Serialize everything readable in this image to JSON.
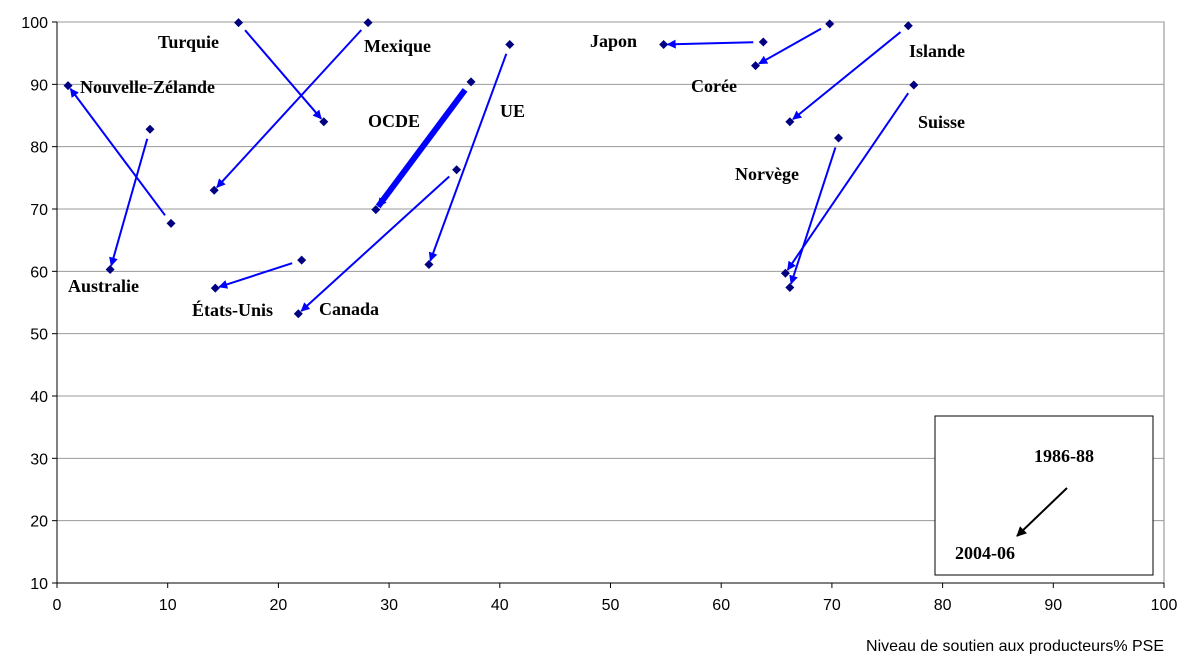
{
  "chart_data": {
    "type": "scatter",
    "title": "",
    "xlabel": "Niveau de soutien aux producteurs% PSE",
    "ylabel": "",
    "xlim": [
      0,
      100
    ],
    "ylim": [
      10,
      100
    ],
    "x_ticks": [
      0,
      10,
      20,
      30,
      40,
      50,
      60,
      70,
      80,
      90,
      100
    ],
    "y_ticks": [
      10,
      20,
      30,
      40,
      50,
      60,
      70,
      80,
      90,
      100
    ],
    "grid": "horizontal",
    "colors": {
      "marker": "#000080",
      "arrow": "#0000ff",
      "legend_arrow": "#000000"
    },
    "series": [
      {
        "name": "Nouvelle-Zélande",
        "from": {
          "x": 10.3,
          "y": 67.7
        },
        "to": {
          "x": 1.0,
          "y": 89.8
        }
      },
      {
        "name": "Australie",
        "from": {
          "x": 8.4,
          "y": 82.8
        },
        "to": {
          "x": 4.8,
          "y": 60.3
        }
      },
      {
        "name": "Turquie",
        "from": {
          "x": 16.4,
          "y": 99.9
        },
        "to": {
          "x": 24.1,
          "y": 84.0
        }
      },
      {
        "name": "Mexique",
        "from": {
          "x": 28.1,
          "y": 99.9
        },
        "to": {
          "x": 14.2,
          "y": 73.0
        }
      },
      {
        "name": "États-Unis",
        "from": {
          "x": 22.1,
          "y": 61.8
        },
        "to": {
          "x": 14.3,
          "y": 57.3
        }
      },
      {
        "name": "Canada",
        "from": {
          "x": 36.1,
          "y": 76.3
        },
        "to": {
          "x": 21.8,
          "y": 53.2
        }
      },
      {
        "name": "OCDE",
        "from": {
          "x": 37.4,
          "y": 90.4
        },
        "to": {
          "x": 28.8,
          "y": 69.9
        }
      },
      {
        "name": "UE",
        "from": {
          "x": 40.9,
          "y": 96.4
        },
        "to": {
          "x": 33.6,
          "y": 61.1
        }
      },
      {
        "name": "Japon",
        "from": {
          "x": 63.8,
          "y": 96.8
        },
        "to": {
          "x": 54.8,
          "y": 96.4
        }
      },
      {
        "name": "Corée",
        "from": {
          "x": 69.8,
          "y": 99.7
        },
        "to": {
          "x": 63.1,
          "y": 93.0
        }
      },
      {
        "name": "Islande",
        "from": {
          "x": 76.9,
          "y": 99.4
        },
        "to": {
          "x": 66.2,
          "y": 84.0
        }
      },
      {
        "name": "Suisse",
        "from": {
          "x": 77.4,
          "y": 89.9
        },
        "to": {
          "x": 65.8,
          "y": 59.7
        }
      },
      {
        "name": "Norvège",
        "from": {
          "x": 70.6,
          "y": 81.4
        },
        "to": {
          "x": 66.2,
          "y": 57.4
        }
      }
    ],
    "legend": {
      "position": "bottom-right",
      "from_label": "1986-88",
      "to_label": "2004-06"
    }
  }
}
